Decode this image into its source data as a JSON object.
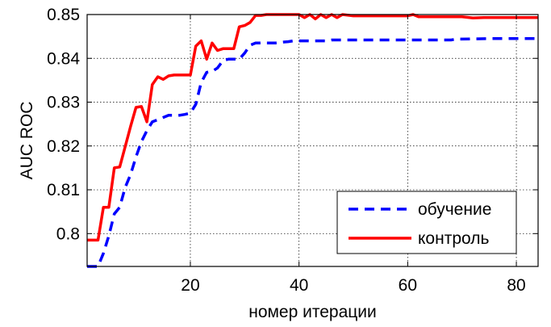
{
  "chart_data": {
    "type": "line",
    "title": "",
    "xlabel": "номер итерации",
    "ylabel": "AUC ROC",
    "xlim": [
      1,
      84
    ],
    "ylim": [
      0.7925,
      0.85
    ],
    "xticks": [
      20,
      40,
      60,
      80
    ],
    "yticks": [
      0.8,
      0.81,
      0.82,
      0.83,
      0.84,
      0.85
    ],
    "xtick_labels": [
      "20",
      "40",
      "60",
      "80"
    ],
    "ytick_labels": [
      "0.8",
      "0.81",
      "0.82",
      "0.83",
      "0.84",
      "0.85"
    ],
    "grid": true,
    "legend_position": "bottom-right",
    "series": [
      {
        "name": "обучение",
        "color": "#0000ff",
        "style": "dashed",
        "x": [
          1,
          2,
          3,
          4,
          5,
          6,
          7,
          8,
          9,
          10,
          11,
          12,
          13,
          14,
          15,
          16,
          17,
          18,
          19,
          20,
          21,
          22,
          23,
          24,
          25,
          26,
          27,
          28,
          29,
          30,
          31,
          32,
          33,
          34,
          35,
          36,
          37,
          38,
          39,
          40,
          45,
          46,
          50,
          55,
          60,
          65,
          68,
          69,
          70,
          75,
          80,
          84
        ],
        "y": [
          0.7925,
          0.7925,
          0.7925,
          0.7955,
          0.7995,
          0.8045,
          0.806,
          0.8105,
          0.8135,
          0.8175,
          0.821,
          0.8235,
          0.8255,
          0.826,
          0.8265,
          0.827,
          0.827,
          0.827,
          0.8272,
          0.8275,
          0.8295,
          0.8345,
          0.8368,
          0.837,
          0.8378,
          0.8395,
          0.8398,
          0.8398,
          0.8398,
          0.8412,
          0.843,
          0.8435,
          0.8435,
          0.8435,
          0.8435,
          0.8435,
          0.8437,
          0.8438,
          0.844,
          0.844,
          0.844,
          0.8442,
          0.8442,
          0.8442,
          0.8442,
          0.8442,
          0.8442,
          0.8444,
          0.8444,
          0.8445,
          0.8445,
          0.8445
        ]
      },
      {
        "name": "контроль",
        "color": "#ff0000",
        "style": "solid",
        "x": [
          1,
          2,
          3,
          4,
          5,
          6,
          7,
          8,
          9,
          10,
          11,
          12,
          13,
          14,
          15,
          16,
          17,
          18,
          19,
          20,
          21,
          22,
          23,
          24,
          25,
          26,
          27,
          28,
          29,
          30,
          31,
          32,
          33,
          34,
          35,
          40,
          41,
          42,
          43,
          44,
          45,
          46,
          47,
          48,
          50,
          55,
          60,
          61,
          62,
          65,
          70,
          72,
          74,
          80,
          84
        ],
        "y": [
          0.7985,
          0.7985,
          0.7985,
          0.806,
          0.806,
          0.815,
          0.8152,
          0.8198,
          0.8245,
          0.8288,
          0.829,
          0.8255,
          0.834,
          0.8358,
          0.8352,
          0.836,
          0.8362,
          0.8362,
          0.8362,
          0.8362,
          0.8428,
          0.844,
          0.8398,
          0.8435,
          0.8418,
          0.8422,
          0.8422,
          0.8422,
          0.8472,
          0.8475,
          0.8482,
          0.8498,
          0.8498,
          0.85,
          0.85,
          0.85,
          0.8493,
          0.85,
          0.849,
          0.85,
          0.8493,
          0.85,
          0.8493,
          0.85,
          0.8497,
          0.8497,
          0.8497,
          0.85,
          0.8495,
          0.8495,
          0.8495,
          0.8492,
          0.8493,
          0.8493,
          0.8493
        ]
      }
    ]
  }
}
